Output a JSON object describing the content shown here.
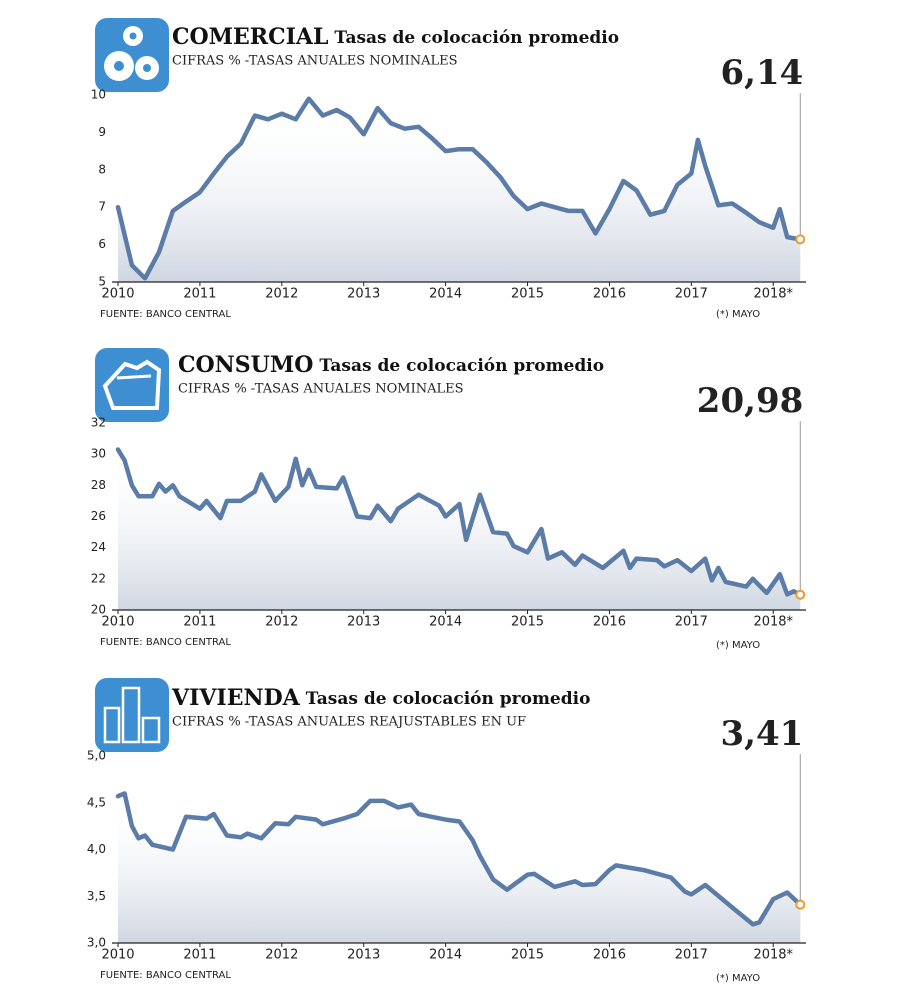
{
  "chart_data": [
    {
      "type": "line",
      "title": "COMERCIAL",
      "subtitle": "Tasas de colocación promedio",
      "units_note": "CIFRAS % -TASAS ANUALES NOMINALES",
      "source": "FUENTE: BANCO CENTRAL",
      "note": "(*) MAYO",
      "color": "#5b7ca8",
      "highlight_color": "#ec9a2e",
      "x": [
        2010,
        2010.17,
        2010.33,
        2010.5,
        2010.67,
        2010.83,
        2011,
        2011.17,
        2011.33,
        2011.5,
        2011.67,
        2011.83,
        2012,
        2012.17,
        2012.33,
        2012.5,
        2012.67,
        2012.83,
        2013,
        2013.17,
        2013.33,
        2013.5,
        2013.67,
        2013.83,
        2014,
        2014.17,
        2014.33,
        2014.5,
        2014.67,
        2014.83,
        2015,
        2015.17,
        2015.33,
        2015.5,
        2015.67,
        2015.83,
        2016,
        2016.17,
        2016.33,
        2016.5,
        2016.67,
        2016.83,
        2017,
        2017.08,
        2017.17,
        2017.33,
        2017.5,
        2017.67,
        2017.83,
        2018,
        2018.08,
        2018.17,
        2018.33
      ],
      "values": [
        7.0,
        5.45,
        5.1,
        5.8,
        6.9,
        7.15,
        7.4,
        7.9,
        8.35,
        8.7,
        9.45,
        9.35,
        9.5,
        9.35,
        9.9,
        9.45,
        9.6,
        9.4,
        8.95,
        9.65,
        9.25,
        9.1,
        9.15,
        8.85,
        8.5,
        8.55,
        8.55,
        8.2,
        7.8,
        7.3,
        6.95,
        7.1,
        7.0,
        6.9,
        6.9,
        6.3,
        6.95,
        7.7,
        7.45,
        6.8,
        6.9,
        7.6,
        7.9,
        8.8,
        8.1,
        7.05,
        7.1,
        6.85,
        6.6,
        6.45,
        6.95,
        6.2,
        6.14
      ],
      "value_labels": [
        null,
        null,
        null,
        null,
        null,
        null,
        null,
        null,
        null,
        null,
        null,
        null,
        null,
        null,
        null,
        null,
        null,
        null,
        null,
        null,
        null,
        null,
        null,
        null,
        null,
        null,
        null,
        null,
        null,
        null,
        null,
        null,
        null,
        null,
        null,
        null,
        null,
        null,
        null,
        null,
        null,
        null,
        null,
        null,
        null,
        null,
        null,
        null,
        null,
        null,
        null,
        null,
        "6,14"
      ],
      "xlim": [
        2010,
        2018.4
      ],
      "xticks": [
        2010,
        2011,
        2012,
        2013,
        2014,
        2015,
        2016,
        2017,
        {
          "value": 2018,
          "label": "2018*"
        }
      ],
      "ylim": [
        5,
        10
      ],
      "yticks": [
        5,
        6,
        7,
        8,
        9,
        10
      ]
    },
    {
      "type": "line",
      "title": "CONSUMO",
      "subtitle": "Tasas de colocación promedio",
      "units_note": "CIFRAS % -TASAS ANUALES NOMINALES",
      "source": "FUENTE: BANCO CENTRAL",
      "note": "(*) MAYO",
      "color": "#5b7ca8",
      "highlight_color": "#ec9a2e",
      "x": [
        2010,
        2010.08,
        2010.17,
        2010.25,
        2010.42,
        2010.5,
        2010.58,
        2010.67,
        2010.75,
        2011,
        2011.08,
        2011.25,
        2011.33,
        2011.5,
        2011.67,
        2011.75,
        2011.92,
        2012.08,
        2012.17,
        2012.25,
        2012.33,
        2012.42,
        2012.67,
        2012.75,
        2012.92,
        2013.08,
        2013.17,
        2013.33,
        2013.42,
        2013.67,
        2013.92,
        2014,
        2014.17,
        2014.25,
        2014.42,
        2014.58,
        2014.75,
        2014.83,
        2015,
        2015.17,
        2015.25,
        2015.42,
        2015.58,
        2015.67,
        2015.92,
        2016.17,
        2016.25,
        2016.33,
        2016.58,
        2016.67,
        2016.83,
        2017,
        2017.17,
        2017.25,
        2017.33,
        2017.42,
        2017.67,
        2017.75,
        2017.92,
        2018.08,
        2018.17,
        2018.25,
        2018.33
      ],
      "values": [
        30.3,
        29.6,
        28.0,
        27.3,
        27.3,
        28.1,
        27.6,
        28.0,
        27.3,
        26.5,
        27.0,
        25.9,
        27.0,
        27.0,
        27.6,
        28.7,
        27.0,
        27.9,
        29.7,
        28.0,
        29.0,
        27.9,
        27.8,
        28.5,
        26.0,
        25.9,
        26.7,
        25.7,
        26.5,
        27.4,
        26.7,
        26.0,
        26.8,
        24.5,
        27.4,
        25.0,
        24.9,
        24.1,
        23.7,
        25.2,
        23.3,
        23.7,
        22.9,
        23.5,
        22.7,
        23.8,
        22.7,
        23.3,
        23.2,
        22.8,
        23.2,
        22.5,
        23.3,
        21.9,
        22.7,
        21.8,
        21.5,
        22.0,
        21.1,
        22.3,
        21.0,
        21.2,
        20.98
      ],
      "value_labels": [
        null,
        null,
        null,
        null,
        null,
        null,
        null,
        null,
        null,
        null,
        null,
        null,
        null,
        null,
        null,
        null,
        null,
        null,
        null,
        null,
        null,
        null,
        null,
        null,
        null,
        null,
        null,
        null,
        null,
        null,
        null,
        null,
        null,
        null,
        null,
        null,
        null,
        null,
        null,
        null,
        null,
        null,
        null,
        null,
        null,
        null,
        null,
        null,
        null,
        null,
        null,
        null,
        null,
        null,
        null,
        null,
        null,
        null,
        null,
        null,
        null,
        null,
        "20,98"
      ],
      "xlim": [
        2010,
        2018.4
      ],
      "xticks": [
        2010,
        2011,
        2012,
        2013,
        2014,
        2015,
        2016,
        2017,
        {
          "value": 2018,
          "label": "2018*"
        }
      ],
      "ylim": [
        20,
        32
      ],
      "yticks": [
        20,
        22,
        24,
        26,
        28,
        30,
        32
      ]
    },
    {
      "type": "line",
      "title": "VIVIENDA",
      "subtitle": "Tasas de colocación promedio",
      "units_note": "CIFRAS % -TASAS ANUALES REAJUSTABLES EN UF",
      "source": "FUENTE: BANCO CENTRAL",
      "note": "(*) MAYO",
      "color": "#5b7ca8",
      "highlight_color": "#ec9a2e",
      "x": [
        2010,
        2010.08,
        2010.17,
        2010.25,
        2010.33,
        2010.42,
        2010.67,
        2010.83,
        2011.08,
        2011.17,
        2011.33,
        2011.5,
        2011.58,
        2011.75,
        2011.92,
        2012.08,
        2012.17,
        2012.42,
        2012.5,
        2012.75,
        2012.92,
        2013.08,
        2013.25,
        2013.42,
        2013.58,
        2013.67,
        2013.83,
        2014,
        2014.17,
        2014.33,
        2014.42,
        2014.58,
        2014.75,
        2015,
        2015.08,
        2015.33,
        2015.58,
        2015.67,
        2015.83,
        2016,
        2016.08,
        2016.42,
        2016.75,
        2016.92,
        2017,
        2017.17,
        2017.5,
        2017.75,
        2017.83,
        2018,
        2018.17,
        2018.33
      ],
      "values": [
        4.57,
        4.6,
        4.25,
        4.12,
        4.15,
        4.05,
        4.0,
        4.35,
        4.33,
        4.38,
        4.15,
        4.13,
        4.17,
        4.12,
        4.28,
        4.27,
        4.35,
        4.32,
        4.27,
        4.33,
        4.38,
        4.52,
        4.52,
        4.45,
        4.48,
        4.38,
        4.35,
        4.32,
        4.3,
        4.1,
        3.93,
        3.68,
        3.57,
        3.73,
        3.74,
        3.6,
        3.66,
        3.62,
        3.63,
        3.78,
        3.83,
        3.78,
        3.7,
        3.55,
        3.52,
        3.62,
        3.38,
        3.2,
        3.22,
        3.47,
        3.54,
        3.41
      ],
      "value_labels": [
        null,
        null,
        null,
        null,
        null,
        null,
        null,
        null,
        null,
        null,
        null,
        null,
        null,
        null,
        null,
        null,
        null,
        null,
        null,
        null,
        null,
        null,
        null,
        null,
        null,
        null,
        null,
        null,
        null,
        null,
        null,
        null,
        null,
        null,
        null,
        null,
        null,
        null,
        null,
        null,
        null,
        null,
        null,
        null,
        null,
        null,
        null,
        null,
        null,
        null,
        null,
        "3,41"
      ],
      "xlim": [
        2010,
        2018.4
      ],
      "xticks": [
        2010,
        2011,
        2012,
        2013,
        2014,
        2015,
        2016,
        2017,
        {
          "value": 2018,
          "label": "2018*"
        }
      ],
      "ylim": [
        3,
        5
      ],
      "yticks": [
        {
          "value": 3,
          "label": "3,0"
        },
        {
          "value": 3.5,
          "label": "3,5"
        },
        {
          "value": 4,
          "label": "4,0"
        },
        {
          "value": 4.5,
          "label": "4,5"
        },
        {
          "value": 5,
          "label": "5,0"
        }
      ]
    }
  ]
}
